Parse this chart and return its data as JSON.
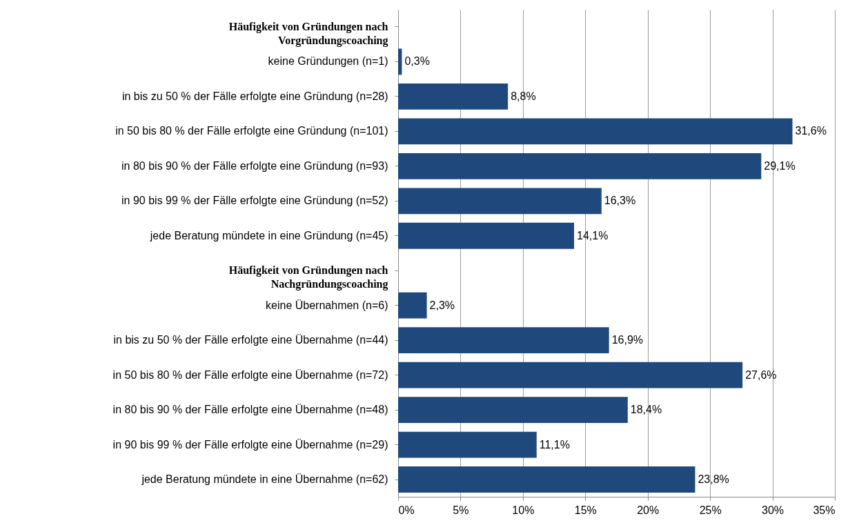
{
  "chart_data": {
    "type": "bar",
    "orientation": "horizontal",
    "categories": [
      "Häufigkeit von Gründungen nach Vorgründungscoaching",
      "keine Gründungen (n=1)",
      "in bis zu 50 % der Fälle erfolgte eine Gründung (n=28)",
      "in 50 bis 80 % der Fälle erfolgte eine Gründung (n=101)",
      "in 80 bis 90 % der Fälle erfolgte eine Gründung (n=93)",
      "in 90 bis 99 % der Fälle erfolgte eine Gründung (n=52)",
      "jede Beratung mündete in eine Gründung (n=45)",
      "Häufigkeit von Gründungen nach Nachgründungscoaching",
      "keine Übernahmen (n=6)",
      "in bis zu 50 % der Fälle erfolgte eine Übernahme (n=44)",
      "in 50 bis 80 % der Fälle erfolgte eine Übernahme (n=72)",
      "in 80 bis 90 % der Fälle erfolgte eine Übernahme (n=48)",
      "in 90 bis 99 % der Fälle erfolgte eine Übernahme (n=29)",
      "jede Beratung mündete in eine Übernahme (n=62)"
    ],
    "values": [
      null,
      0.3,
      8.8,
      31.6,
      29.1,
      16.3,
      14.1,
      null,
      2.3,
      16.9,
      27.6,
      18.4,
      11.1,
      23.8
    ],
    "value_labels": [
      null,
      "0,3%",
      "8,8%",
      "31,6%",
      "29,1%",
      "16,3%",
      "14,1%",
      null,
      "2,3%",
      "16,9%",
      "27,6%",
      "18,4%",
      "11,1%",
      "23,8%"
    ],
    "color": "#1f497d",
    "xlim": [
      0,
      35
    ],
    "xticks": [
      {
        "value": 0,
        "label": "0%"
      },
      {
        "value": 5,
        "label": "5%"
      },
      {
        "value": 10,
        "label": "10%"
      },
      {
        "value": 15,
        "label": "15%"
      },
      {
        "value": 20,
        "label": "20%"
      },
      {
        "value": 25,
        "label": "25%"
      },
      {
        "value": 30,
        "label": "30%"
      },
      {
        "value": 35,
        "label": "35%"
      }
    ],
    "grid": "x"
  }
}
